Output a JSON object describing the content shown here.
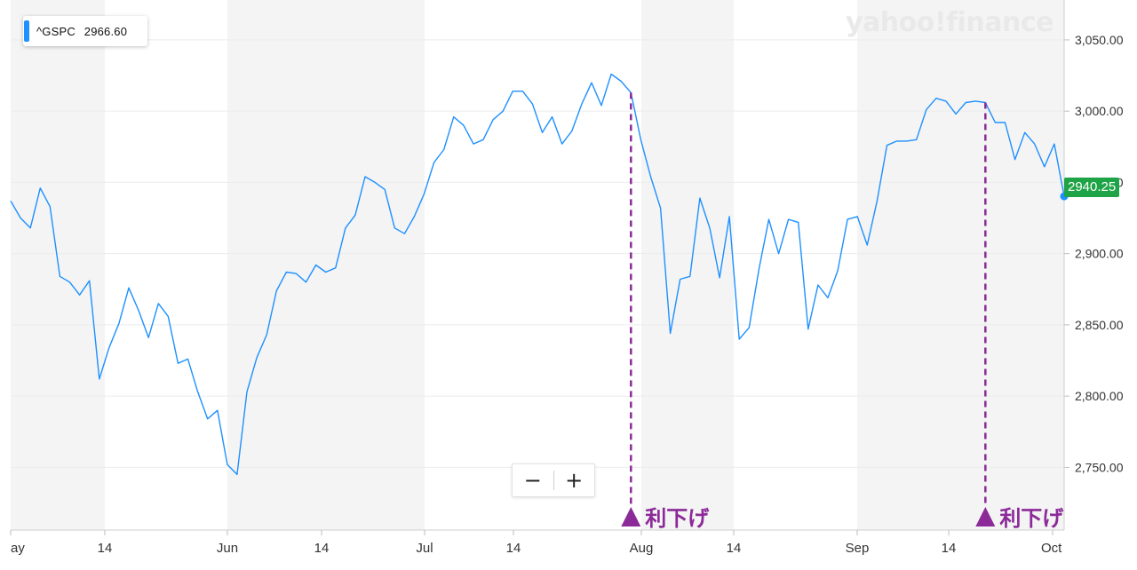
{
  "legend": {
    "symbol": "^GSPC",
    "value": "2966.60"
  },
  "last_price_label": "2940.25",
  "watermark": "yahoo!finance",
  "zoom": {
    "minus": "−",
    "plus": "+"
  },
  "colors": {
    "line": "#1e90ff",
    "marker": "#8b2a98",
    "last_badge": "#1fa347",
    "band": "#f4f4f4"
  },
  "chart_data": {
    "type": "line",
    "series": [
      {
        "values": [
          2937.0,
          2925.0,
          2918.0,
          2946.0,
          2933.0,
          2884.0,
          2880.0,
          2871.0,
          2881.0,
          2812.0,
          2834.0,
          2851.0,
          2876.0,
          2860.0,
          2841.0,
          2865.0,
          2856.0,
          2823.0,
          2826.0,
          2803.0,
          2784.0,
          2790.0,
          2752.0,
          2745.0,
          2803.0,
          2827.0,
          2843.0,
          2874.0,
          2887.0,
          2886.0,
          2880.0,
          2892.0,
          2887.0,
          2890.0,
          2918.0,
          2927.0,
          2954.0,
          2950.0,
          2945.0,
          2918.0,
          2914.0,
          2926.0,
          2942.0,
          2964.0,
          2973.0,
          2996.0,
          2990.0,
          2977.0,
          2980.0,
          2994.0,
          3000.0,
          3014.0,
          3014.0,
          3005.0,
          2985.0,
          2996.0,
          2977.0,
          2986.0,
          3005.0,
          3020.0,
          3004.0,
          3026.0,
          3021.0,
          3013.0,
          2980.0,
          2954.0,
          2932.0,
          2844.0,
          2882.0,
          2884.0,
          2939.0,
          2918.0,
          2883.0,
          2926.0,
          2840.0,
          2848.0,
          2889.0,
          2924.0,
          2900.0,
          2924.0,
          2922.0,
          2847.0,
          2878.0,
          2869.0,
          2888.0,
          2924.0,
          2926.0,
          2906.0,
          2937.0,
          2976.0,
          2979.0,
          2979.0,
          2980.0,
          3001.0,
          3009.0,
          3007.0,
          2998.0,
          3006.0,
          3007.0,
          3006.0,
          2992.0,
          2992.0,
          2966.0,
          2985.0,
          2977.0,
          2961.0,
          2977.0,
          2940.25
        ]
      }
    ],
    "x_tick_labels": [
      "ay",
      "14",
      "Jun",
      "14",
      "Jul",
      "14",
      "Aug",
      "14",
      "Sep",
      "14",
      "Oct"
    ],
    "y_tick_labels": [
      "3,050.00",
      "3,000.00",
      "2,950.00",
      "2,900.00",
      "2,850.00",
      "2,800.00",
      "2,750.00"
    ],
    "y_ticks": [
      3050,
      3000,
      2950,
      2900,
      2850,
      2800,
      2750
    ],
    "ylim": [
      2706,
      3078
    ],
    "annotations": [
      {
        "label": "利下げ",
        "index": 63
      },
      {
        "label": "利下げ",
        "index": 99
      }
    ],
    "last_value": 2940.25,
    "grid": true
  }
}
